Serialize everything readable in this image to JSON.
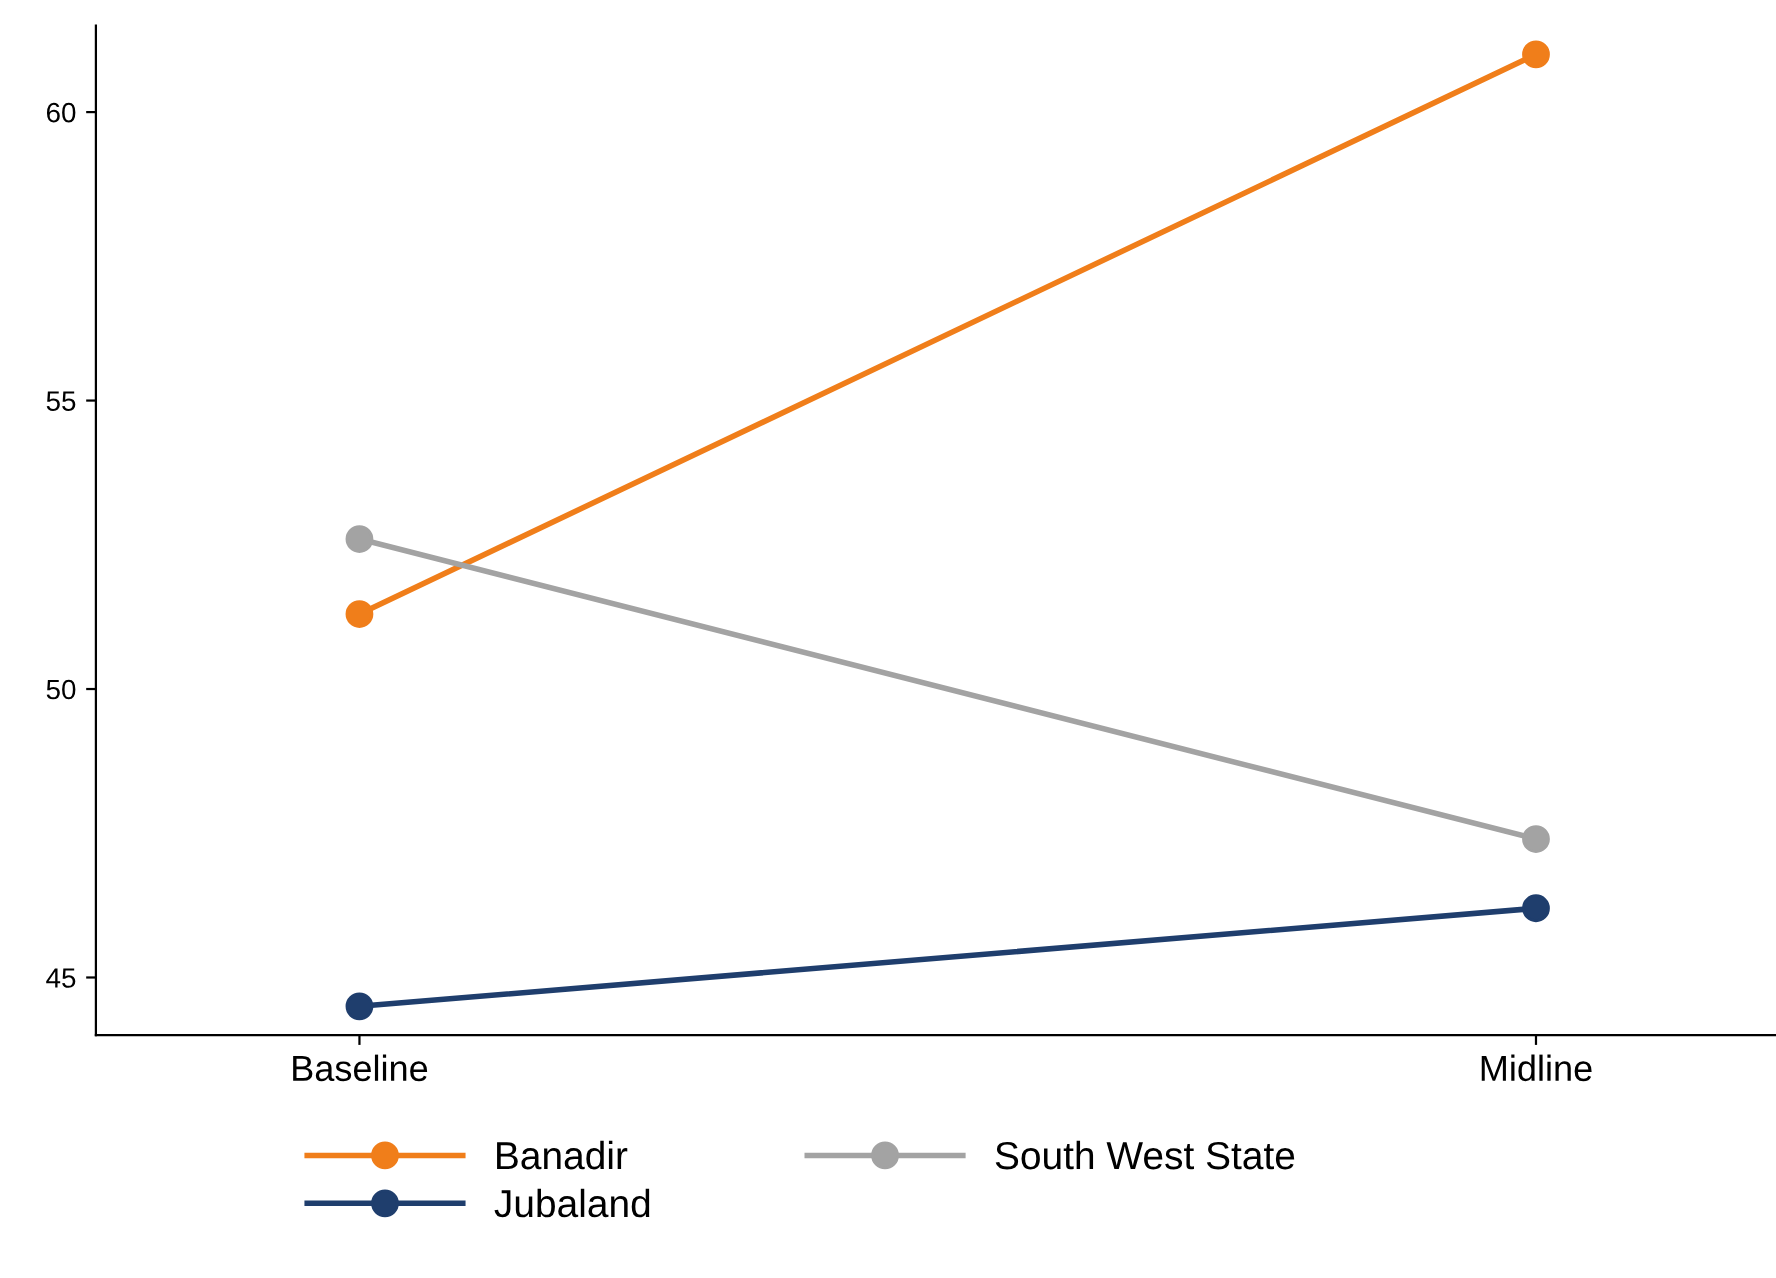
{
  "chart_data": {
    "type": "line",
    "categories": [
      "Baseline",
      "Midline"
    ],
    "series": [
      {
        "name": "Banadir",
        "color": "#f07e1a",
        "values": [
          51.3,
          61.0
        ]
      },
      {
        "name": "Jubaland",
        "color": "#1f3e6d",
        "values": [
          44.5,
          46.2
        ]
      },
      {
        "name": "South West State",
        "color": "#a3a3a3",
        "values": [
          52.6,
          47.4
        ]
      }
    ],
    "ylim": [
      44,
      61.5
    ],
    "yticks": [
      45,
      50,
      55,
      60
    ],
    "marker": "circle",
    "line_style": "solid",
    "grid": false,
    "legend": "bottom"
  }
}
